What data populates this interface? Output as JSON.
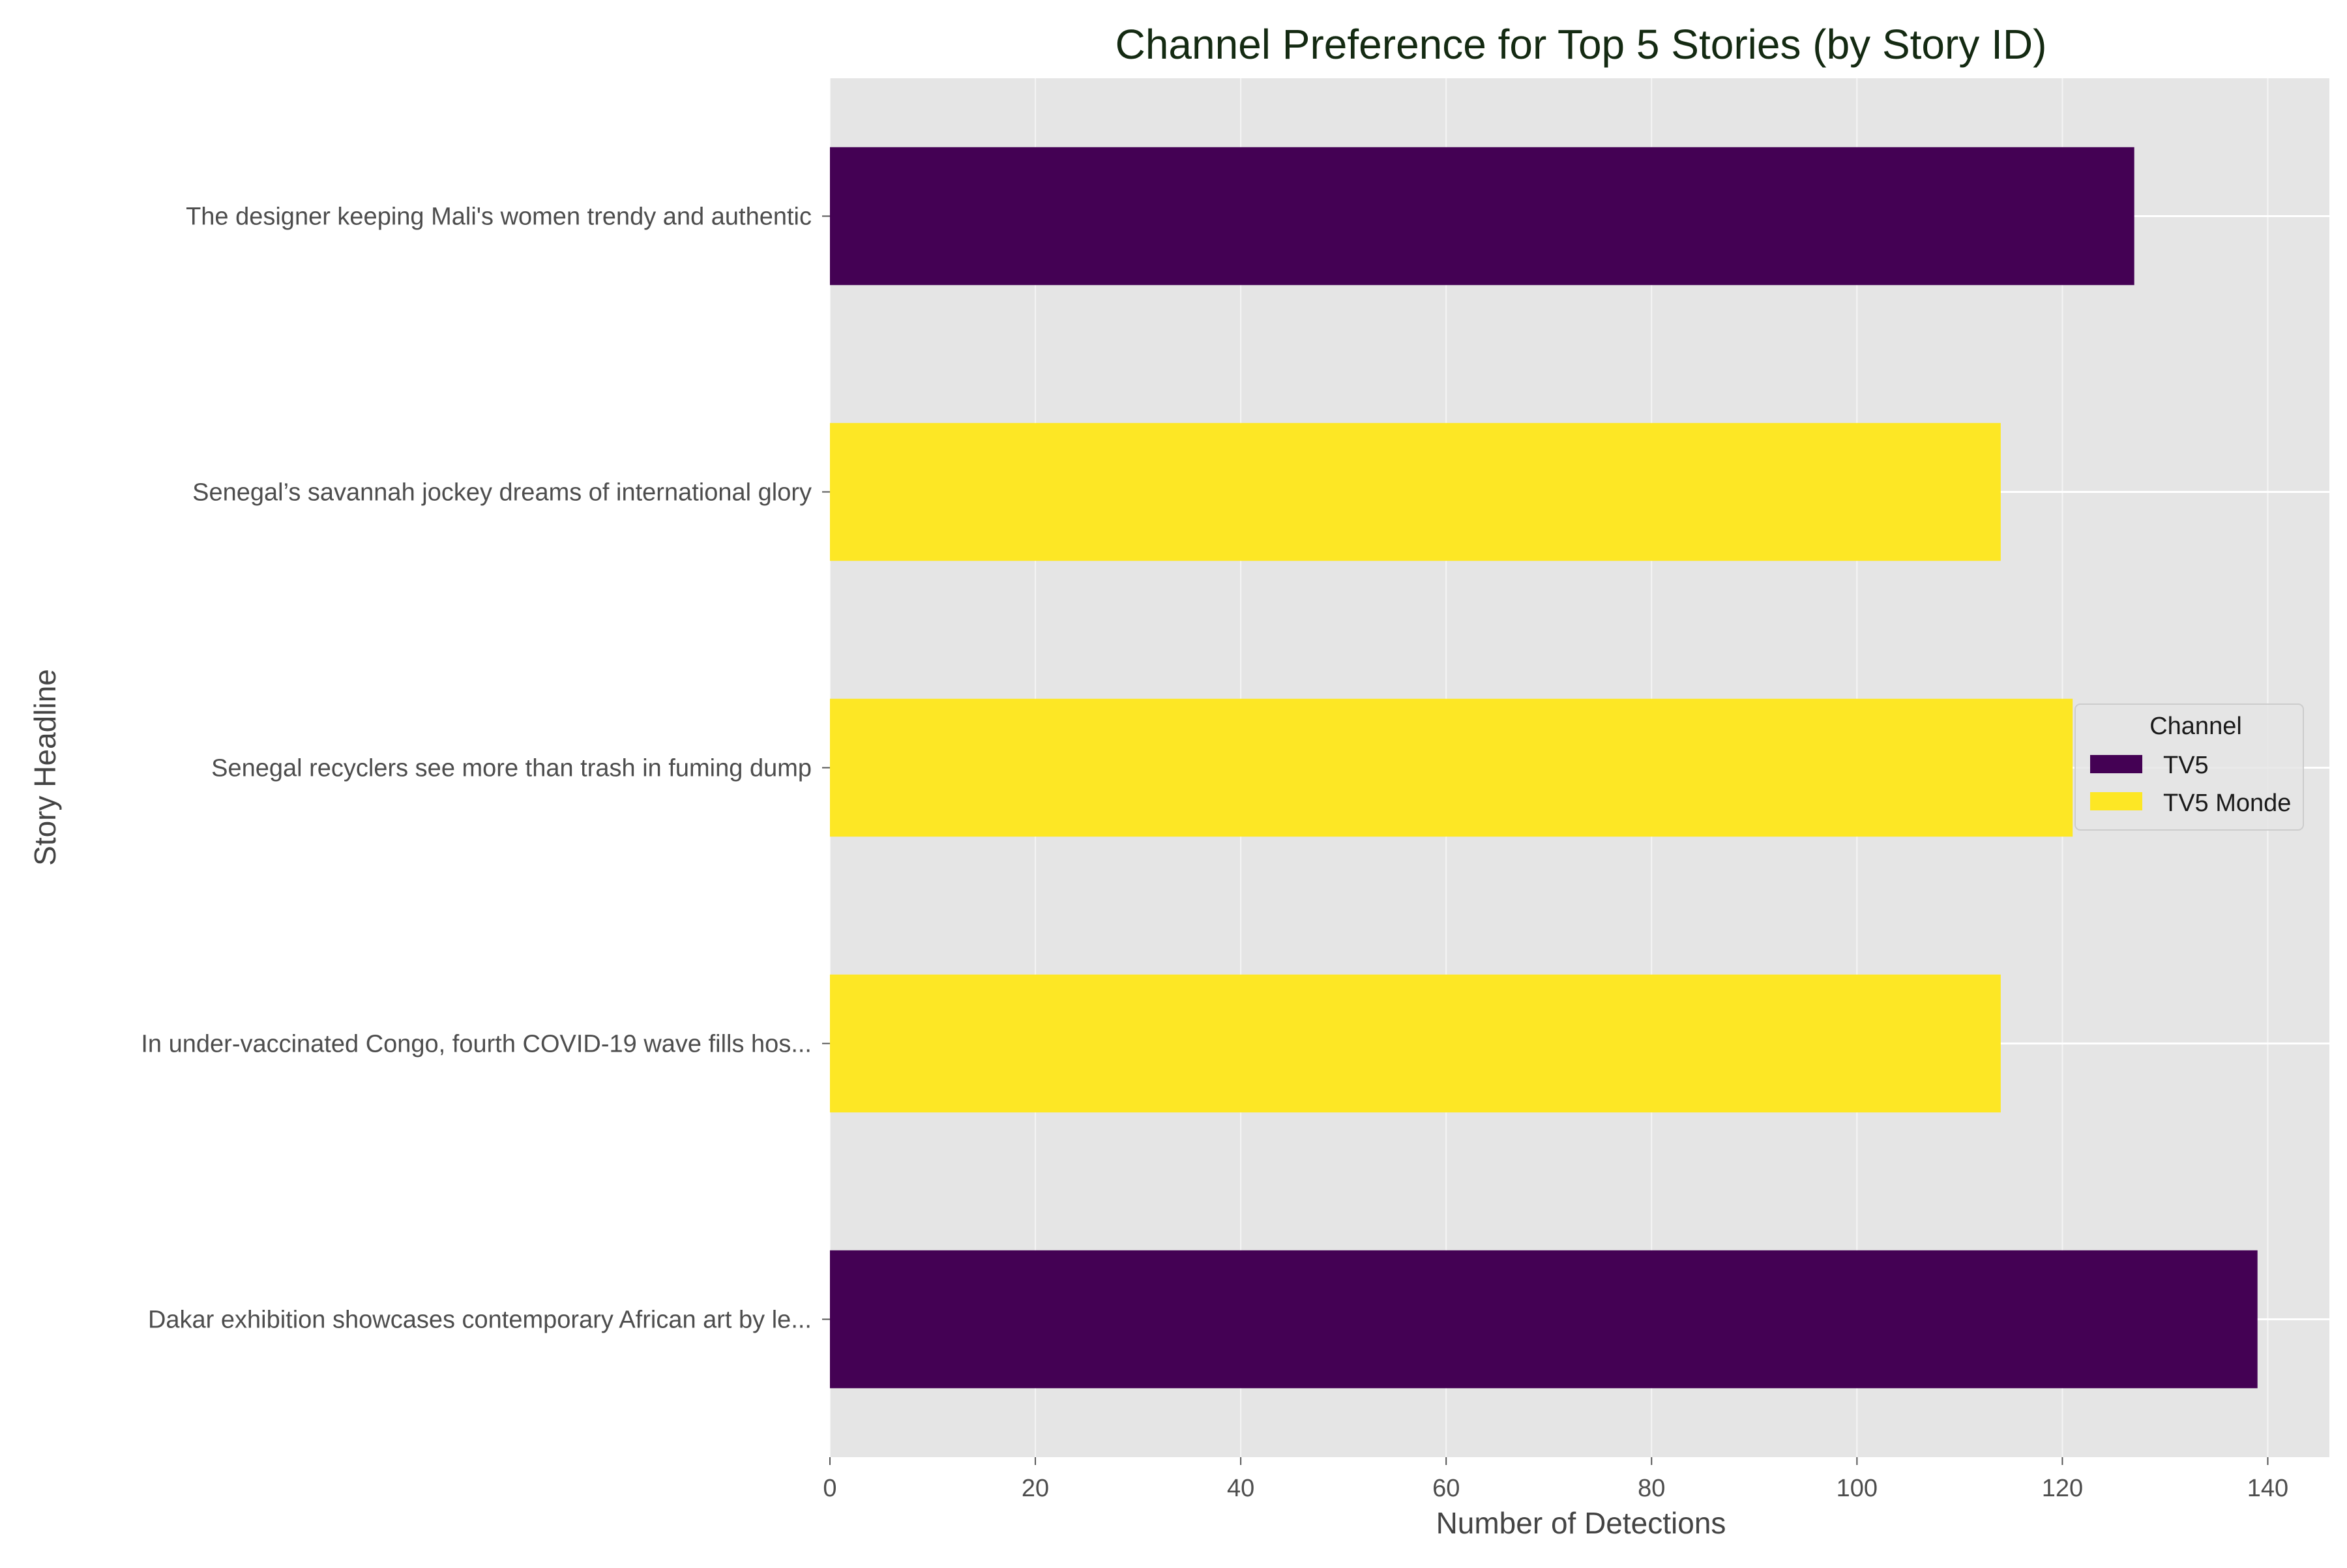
{
  "chart_data": {
    "type": "bar",
    "orientation": "horizontal",
    "title": "Channel Preference for Top 5 Stories (by Story ID)",
    "xlabel": "Number of Detections",
    "ylabel": "Story Headline",
    "xlim": [
      0,
      146
    ],
    "xticks": [
      0,
      20,
      40,
      60,
      80,
      100,
      120,
      140
    ],
    "grid": true,
    "legend": {
      "title": "Channel",
      "placement": "center-right",
      "entries": [
        {
          "name": "TV5",
          "color": "#440154"
        },
        {
          "name": "TV5 Monde",
          "color": "#fde725"
        }
      ]
    },
    "categories": [
      "The designer keeping Mali's women trendy and authentic",
      "Senegal’s savannah jockey dreams of international glory",
      "Senegal recyclers see more than trash in fuming dump",
      "In under-vaccinated Congo, fourth COVID-19 wave fills hos...",
      "Dakar exhibition showcases contemporary African art by le..."
    ],
    "bars": [
      {
        "category": "The designer keeping Mali's women trendy and authentic",
        "channel": "TV5",
        "value": 127
      },
      {
        "category": "Senegal’s savannah jockey dreams of international glory",
        "channel": "TV5 Monde",
        "value": 114
      },
      {
        "category": "Senegal recyclers see more than trash in fuming dump",
        "channel": "TV5 Monde",
        "value": 121
      },
      {
        "category": "In under-vaccinated Congo, fourth COVID-19 wave fills hos...",
        "channel": "TV5 Monde",
        "value": 114
      },
      {
        "category": "Dakar exhibition showcases contemporary African art by le...",
        "channel": "TV5",
        "value": 139
      }
    ],
    "colors": {
      "plot_background": "#e5e5e5",
      "grid": "#ffffff",
      "TV5": "#440154",
      "TV5 Monde": "#fde725"
    }
  }
}
